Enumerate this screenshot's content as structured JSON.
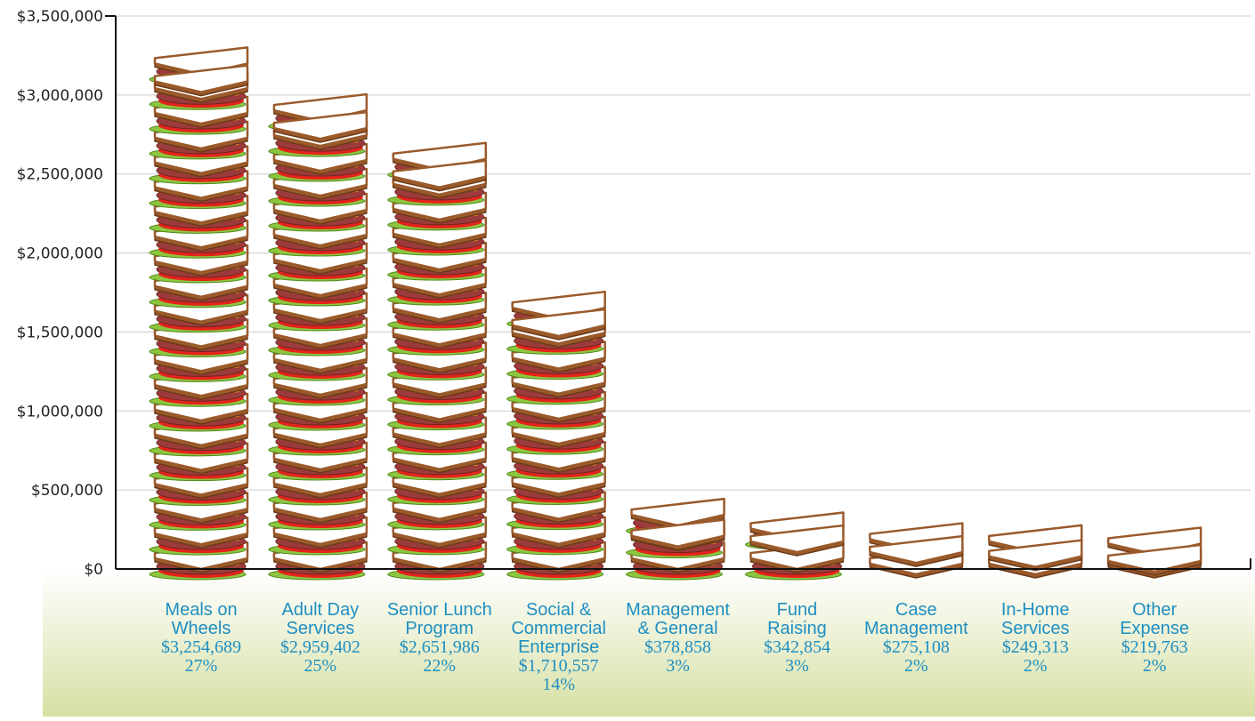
{
  "chart_data": {
    "type": "bar",
    "style": "pictograph-stacked-sandwiches",
    "title": "",
    "xlabel": "",
    "ylabel": "",
    "ylim": [
      0,
      3500000
    ],
    "yticks": [
      "$0",
      "$500,000",
      "$1,000,000",
      "$1,500,000",
      "$2,000,000",
      "$2,500,000",
      "$3,000,000",
      "$3,500,000"
    ],
    "ytick_values": [
      0,
      500000,
      1000000,
      1500000,
      2000000,
      2500000,
      3000000,
      3500000
    ],
    "grid": true,
    "categories": [
      {
        "lines": [
          "Meals on",
          "Wheels"
        ],
        "amount": "$3,254,689",
        "percent": "27%"
      },
      {
        "lines": [
          "Adult Day",
          "Services"
        ],
        "amount": "$2,959,402",
        "percent": "25%"
      },
      {
        "lines": [
          "Senior Lunch",
          "Program"
        ],
        "amount": "$2,651,986",
        "percent": "22%"
      },
      {
        "lines": [
          "Social &",
          "Commercial",
          "Enterprise"
        ],
        "amount": "$1,710,557",
        "percent": "14%"
      },
      {
        "lines": [
          "Management",
          "& General"
        ],
        "amount": "$378,858",
        "percent": "3%"
      },
      {
        "lines": [
          "Fund",
          "Raising"
        ],
        "amount": "$342,854",
        "percent": "3%"
      },
      {
        "lines": [
          "Case",
          "Management"
        ],
        "amount": "$275,108",
        "percent": "2%"
      },
      {
        "lines": [
          "In-Home",
          "Services"
        ],
        "amount": "$249,313",
        "percent": "2%"
      },
      {
        "lines": [
          "Other",
          "Expense"
        ],
        "amount": "$219,763",
        "percent": "2%"
      }
    ],
    "values": [
      3254689,
      2959402,
      2651986,
      1710557,
      378858,
      342854,
      275108,
      249313,
      219763
    ],
    "colors": {
      "label_text": "#1f8fc1",
      "bread": "#ffffff",
      "crust": "#9a5a2b",
      "meat": "#9c3b3b",
      "tomato": "#e3241b",
      "cheese": "#f7a21b",
      "lettuce": "#8cc63f",
      "grid": "#cccccc",
      "footer_gradient_top": "#ffffff",
      "footer_gradient_bottom": "#d6e0a3"
    }
  }
}
